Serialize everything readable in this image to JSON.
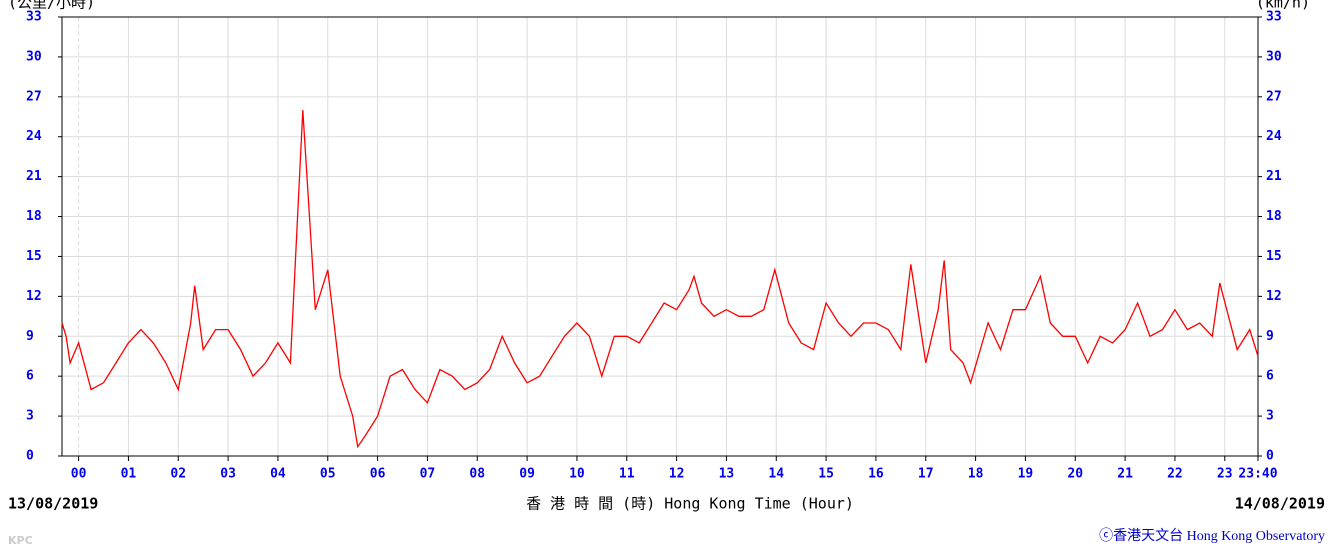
{
  "chart_data": {
    "type": "line",
    "y_label": "(公里/小時)",
    "y2_label": "(km/h)",
    "start_date": "13/08/2019",
    "end_date": "14/08/2019",
    "xlabel": "香 港 時 間 (時) Hong Kong Time (Hour)",
    "credit": "ⓒ香港天文台 Hong Kong Observatory",
    "watermark": "KPC",
    "color": "#ff0000",
    "grid": true,
    "xlim": [
      -0.333,
      23.667
    ],
    "ylim": [
      0,
      33
    ],
    "yticks": [
      0,
      3,
      6,
      9,
      12,
      15,
      18,
      21,
      24,
      27,
      30,
      33
    ],
    "xticks": [
      {
        "value": 0,
        "label": "00"
      },
      {
        "value": 1,
        "label": "01"
      },
      {
        "value": 2,
        "label": "02"
      },
      {
        "value": 3,
        "label": "03"
      },
      {
        "value": 4,
        "label": "04"
      },
      {
        "value": 5,
        "label": "05"
      },
      {
        "value": 6,
        "label": "06"
      },
      {
        "value": 7,
        "label": "07"
      },
      {
        "value": 8,
        "label": "08"
      },
      {
        "value": 9,
        "label": "09"
      },
      10,
      11,
      12,
      13,
      14,
      15,
      16,
      17,
      18,
      19,
      20,
      21,
      22,
      23,
      {
        "value": 23.667,
        "label": "23:40"
      }
    ],
    "x": [
      -0.333,
      -0.25,
      -0.17,
      0,
      0.25,
      0.5,
      0.75,
      1.0,
      1.25,
      1.5,
      1.75,
      2.0,
      2.25,
      2.33,
      2.5,
      2.75,
      3.0,
      3.25,
      3.5,
      3.75,
      4.0,
      4.25,
      4.5,
      4.75,
      5.0,
      5.25,
      5.5,
      5.6,
      5.75,
      6.0,
      6.25,
      6.5,
      6.75,
      7.0,
      7.25,
      7.5,
      7.75,
      8.0,
      8.25,
      8.5,
      8.75,
      9.0,
      9.25,
      9.5,
      9.75,
      10.0,
      10.25,
      10.5,
      10.75,
      11.0,
      11.25,
      11.5,
      11.75,
      12.0,
      12.25,
      12.35,
      12.5,
      12.75,
      13.0,
      13.25,
      13.5,
      13.75,
      13.97,
      14.25,
      14.5,
      14.75,
      15.0,
      15.25,
      15.5,
      15.75,
      16.0,
      16.25,
      16.5,
      16.7,
      17.0,
      17.25,
      17.37,
      17.5,
      17.75,
      17.9,
      18.25,
      18.5,
      18.75,
      19.0,
      19.3,
      19.5,
      19.75,
      20.0,
      20.25,
      20.5,
      20.75,
      21.0,
      21.25,
      21.5,
      21.75,
      22.0,
      22.25,
      22.5,
      22.75,
      22.9,
      23.25,
      23.5,
      23.667
    ],
    "values": [
      10,
      9,
      7,
      8.5,
      5,
      5.5,
      7,
      8.5,
      9.5,
      8.5,
      7,
      5,
      10,
      12.8,
      8,
      9.5,
      9.5,
      8,
      6,
      7,
      8.5,
      7,
      26,
      11,
      14,
      6,
      3,
      0.7,
      1.5,
      3,
      6,
      6.5,
      5,
      4,
      6.5,
      6,
      5,
      5.5,
      6.5,
      9,
      7,
      5.5,
      6,
      7.5,
      9,
      10,
      9,
      6,
      9,
      9,
      8.5,
      10,
      11.5,
      11,
      12.5,
      13.5,
      11.5,
      10.5,
      11,
      10.5,
      10.5,
      11,
      14,
      10,
      8.5,
      8,
      11.5,
      10,
      9,
      10,
      10,
      9.5,
      8,
      14.4,
      7,
      11,
      14.7,
      8,
      7,
      5.5,
      10,
      8,
      11,
      11,
      13.5,
      10,
      9,
      9,
      7,
      9,
      8.5,
      9.5,
      11.5,
      9,
      9.5,
      11,
      9.5,
      10,
      9,
      13,
      8,
      9.5,
      7.5
    ]
  }
}
